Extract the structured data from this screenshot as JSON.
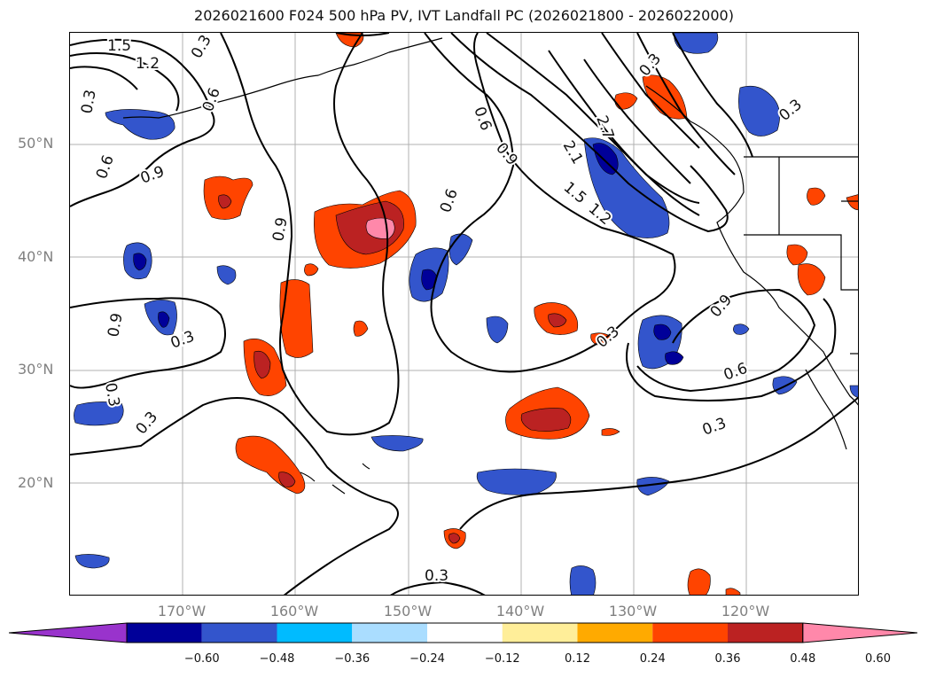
{
  "title": "2026021600 F024 500 hPa PV, IVT Landfall PC (2026021800 - 2026022000)",
  "lat_labels": [
    "50°N",
    "40°N",
    "30°N",
    "20°N"
  ],
  "lon_labels": [
    "170°W",
    "160°W",
    "150°W",
    "140°W",
    "130°W",
    "120°W"
  ],
  "contour_labels": [
    "1.5",
    "1.2",
    "0.3",
    "0.6",
    "0.9",
    "0.3",
    "0.6",
    "0.9",
    "0.6",
    "0.3",
    "0.9",
    "0.3",
    "0.3",
    "0.3",
    "0.6",
    "0.9",
    "2.1",
    "1.5",
    "1.2",
    "2.7",
    "0.3",
    "0.3",
    "0.9",
    "0.6",
    "0.3",
    "0.3"
  ],
  "colorbar": {
    "colors": [
      "#9933cc",
      "#000099",
      "#3355cc",
      "#00bbff",
      "#aaddff",
      "#ffffff",
      "#ffee99",
      "#ffaa00",
      "#ff4400",
      "#bb2222",
      "#ff88aa"
    ],
    "ticks": [
      "−0.60",
      "−0.48",
      "−0.36",
      "−0.24",
      "−0.12",
      "0.12",
      "0.24",
      "0.36",
      "0.48",
      "0.60"
    ]
  }
}
